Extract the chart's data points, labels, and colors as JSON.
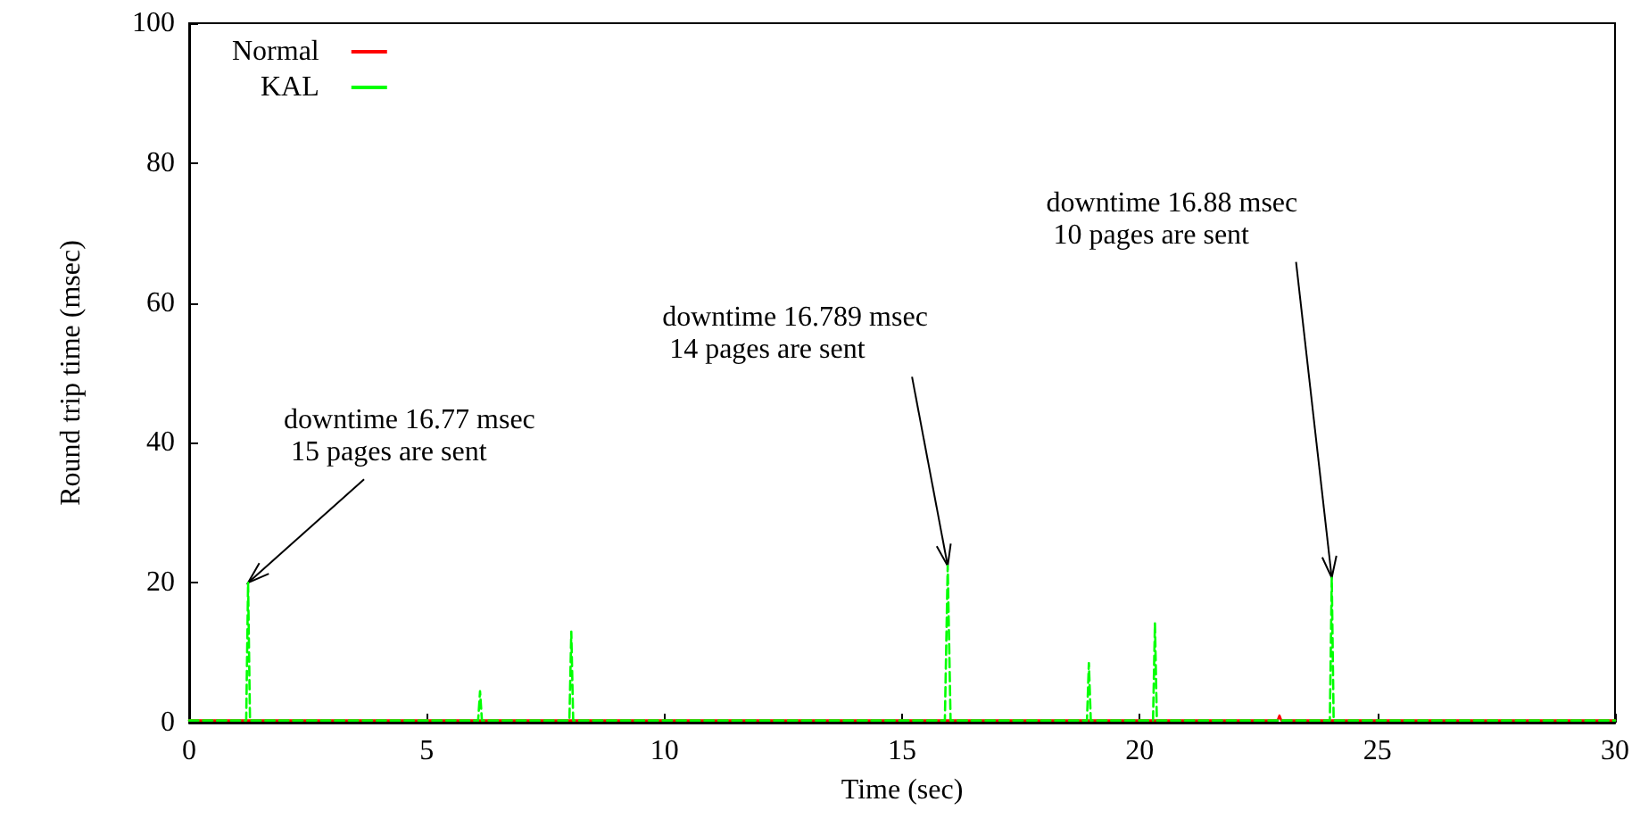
{
  "chart_data": {
    "type": "line",
    "xlabel": "Time (sec)",
    "ylabel": "Round trip time (msec)",
    "xlim": [
      0,
      30
    ],
    "xticks": [
      0,
      5,
      10,
      15,
      20,
      25,
      30
    ],
    "ylim": [
      0,
      100
    ],
    "yticks": [
      0,
      20,
      40,
      60,
      80,
      100
    ],
    "grid": false,
    "legend": "top left",
    "marker": "none",
    "series": [
      {
        "name": "Normal",
        "color": "#ff0000",
        "line_style": "solid",
        "x": [
          0,
          22.9,
          22.94,
          22.98,
          30
        ],
        "values": [
          0.3,
          0.3,
          1.0,
          0.3,
          0.3
        ]
      },
      {
        "name": "KAL",
        "color": "#00ff00",
        "line_style": "dashed",
        "x": [
          0,
          1.2,
          1.24,
          1.28,
          6.08,
          6.12,
          6.16,
          8.0,
          8.04,
          8.08,
          15.9,
          15.96,
          16.02,
          18.89,
          18.93,
          18.97,
          20.28,
          20.32,
          20.36,
          24.0,
          24.04,
          24.08,
          30
        ],
        "values": [
          0.3,
          0.3,
          20.0,
          0.3,
          0.3,
          4.5,
          0.3,
          0.3,
          13.0,
          0.3,
          0.3,
          22.4,
          0.3,
          0.3,
          8.5,
          0.3,
          0.3,
          14.2,
          0.3,
          0.3,
          20.7,
          0.3,
          0.3
        ]
      }
    ],
    "annotations": [
      {
        "text": "downtime 16.77 msec\n 15 pages are sent",
        "x": 1.24,
        "y": 20.0
      },
      {
        "text": "downtime 16.789 msec\n 14 pages are sent",
        "x": 15.96,
        "y": 22.4
      },
      {
        "text": "downtime 16.88 msec\n 10 pages are sent",
        "x": 24.04,
        "y": 20.7
      }
    ]
  }
}
